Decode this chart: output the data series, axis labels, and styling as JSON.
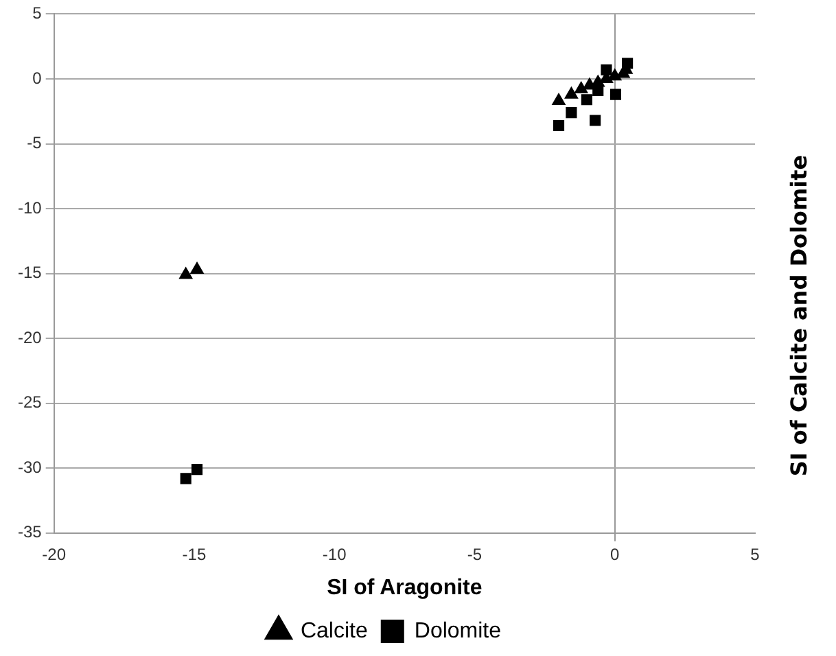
{
  "chart_data": {
    "type": "scatter",
    "xlabel": "SI of Aragonite",
    "ylabel": "SI of Calcite and Dolomite",
    "xlim": [
      -20,
      5
    ],
    "xticks": [
      -20,
      -15,
      -10,
      -5,
      0,
      5
    ],
    "ylim": [
      -35,
      5
    ],
    "yticks": [
      -35,
      -30,
      -25,
      -20,
      -15,
      -10,
      -5,
      0,
      5
    ],
    "grid": "y",
    "legend": "bottom",
    "series": [
      {
        "name": "Calcite",
        "color": "#000000",
        "marker": "triangle",
        "x": [
          -15.3,
          -14.9,
          -2.0,
          -1.55,
          -1.2,
          -0.9,
          -0.6,
          -0.3,
          0,
          0.3,
          0.4
        ],
        "values": [
          -15.1,
          -14.7,
          -1.7,
          -1.2,
          -0.8,
          -0.5,
          -0.3,
          0,
          0.2,
          0.4,
          0.7
        ]
      },
      {
        "name": "Dolomite",
        "color": "#000000",
        "marker": "square",
        "x": [
          -15.3,
          -14.9,
          -2.0,
          -1.55,
          -0.7,
          -1.0,
          -0.6,
          -0.3,
          0,
          0.03,
          -0.3,
          0.45
        ],
        "values": [
          -30.8,
          -30.1,
          -3.6,
          -2.6,
          -3.2,
          -1.6,
          -0.9,
          null,
          null,
          -1.2,
          0.7,
          1.2
        ]
      }
    ]
  }
}
